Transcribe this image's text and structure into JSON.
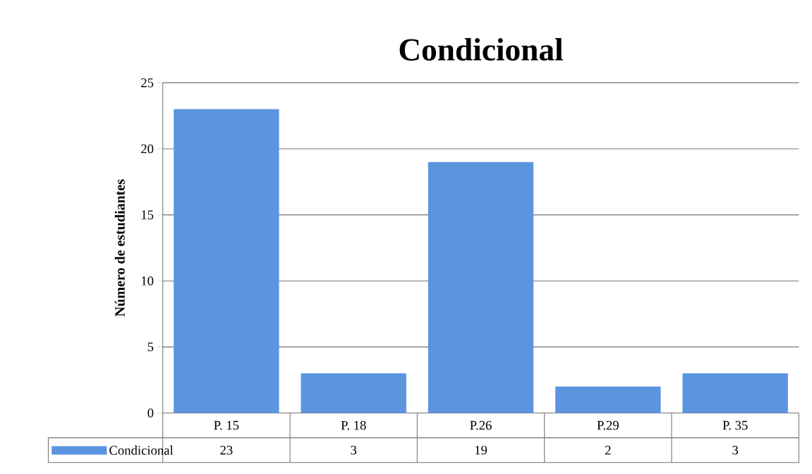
{
  "chart_data": {
    "type": "bar",
    "title": "Condicional",
    "ylabel": "Número de estudiantes",
    "categories": [
      "P. 15",
      "P. 18",
      "P.26",
      "P.29",
      "P. 35"
    ],
    "series": [
      {
        "name": "Condicional",
        "color": "#5b95e0",
        "values": [
          23,
          3,
          19,
          2,
          3
        ]
      }
    ],
    "ylim": [
      0,
      25
    ],
    "yticks": [
      0,
      5,
      10,
      15,
      20,
      25
    ],
    "grid": "y",
    "data_labels": true,
    "legend": "bottom"
  }
}
